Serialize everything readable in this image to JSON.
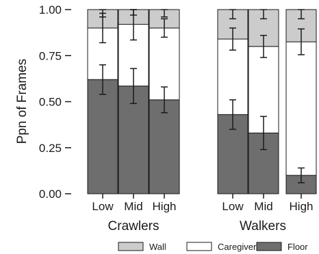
{
  "chart_data": {
    "type": "bar",
    "stacked": true,
    "ylabel": "Ppn of Frames",
    "ylim": [
      0,
      1
    ],
    "yticks": [
      "0.00",
      "0.25",
      "0.50",
      "0.75",
      "1.00"
    ],
    "panels": [
      {
        "title": "Crawlers",
        "categories": [
          "Low",
          "Mid",
          "High"
        ],
        "series": [
          {
            "name": "Floor",
            "color": "#6e6e6e",
            "values": [
              0.62,
              0.585,
              0.51
            ],
            "err": [
              0.08,
              0.095,
              0.07
            ]
          },
          {
            "name": "Caregiver",
            "color": "#ffffff",
            "values": [
              0.28,
              0.335,
              0.39
            ],
            "err": [
              0.08,
              0.085,
              0.05
            ]
          },
          {
            "name": "Wall",
            "color": "#cccccc",
            "values": [
              0.1,
              0.08,
              0.1
            ],
            "err": [
              0.04,
              0.03,
              0.04
            ]
          }
        ]
      },
      {
        "title": "Walkers",
        "categories": [
          "Low",
          "Mid",
          "High"
        ],
        "series": [
          {
            "name": "Floor",
            "color": "#6e6e6e",
            "values": [
              0.43,
              0.33,
              0.1
            ],
            "err": [
              0.08,
              0.09,
              0.04
            ]
          },
          {
            "name": "Caregiver",
            "color": "#ffffff",
            "values": [
              0.41,
              0.47,
              0.725
            ],
            "err": [
              0.06,
              0.06,
              0.07
            ]
          },
          {
            "name": "Wall",
            "color": "#cccccc",
            "values": [
              0.16,
              0.2,
              0.175
            ],
            "err": [
              0.05,
              0.05,
              0.05
            ]
          }
        ]
      }
    ],
    "legend": {
      "position": "bottom",
      "entries": [
        {
          "name": "Wall",
          "color": "#cccccc"
        },
        {
          "name": "Caregiver",
          "color": "#ffffff"
        },
        {
          "name": "Floor",
          "color": "#6e6e6e"
        }
      ]
    }
  }
}
